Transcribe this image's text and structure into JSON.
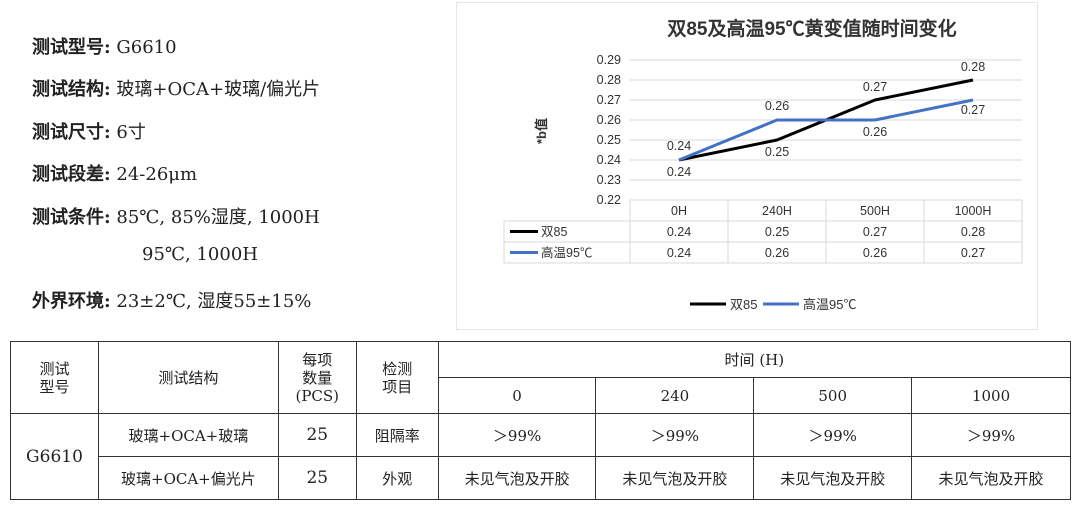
{
  "specs": [
    {
      "key": "测试型号:",
      "value": "G6610"
    },
    {
      "key": "测试结构:",
      "value": "玻璃+OCA+玻璃/偏光片"
    },
    {
      "key": "测试尺寸:",
      "value": "6寸"
    },
    {
      "key": "测试段差:",
      "value": "24-26μm"
    },
    {
      "key": "测试条件:",
      "value": "85℃, 85%湿度, 1000H"
    },
    {
      "key": "",
      "value": "95℃, 1000H"
    },
    {
      "key": "外界环境:",
      "value": "23±2℃, 湿度55±15%"
    }
  ],
  "chart_data": {
    "type": "line",
    "title": "双85及高温95℃黄变值随时间变化",
    "ylabel": "*b值",
    "xlabel": "",
    "categories": [
      "0H",
      "240H",
      "500H",
      "1000H"
    ],
    "ylim": [
      0.22,
      0.29
    ],
    "yticks": [
      0.22,
      0.23,
      0.24,
      0.25,
      0.26,
      0.27,
      0.28,
      0.29
    ],
    "ytick_labels": [
      "0.22",
      "0.23",
      "0.24",
      "0.25",
      "0.26",
      "0.27",
      "0.28",
      "0.29"
    ],
    "series": [
      {
        "name": "双85",
        "color": "#000000",
        "values": [
          0.24,
          0.25,
          0.27,
          0.28
        ],
        "labels": [
          "0.24",
          "0.25",
          "0.27",
          "0.28"
        ]
      },
      {
        "name": "高温95℃",
        "color": "#4472c4",
        "values": [
          0.24,
          0.26,
          0.26,
          0.27
        ],
        "labels": [
          "0.24",
          "0.26",
          "0.26",
          "0.27"
        ]
      }
    ],
    "legend": "bottom",
    "data_table": true
  },
  "table": {
    "h_model": "测试型号",
    "h_structure": "测试结构",
    "h_qty": "每项数量(PCS)",
    "h_item": "检测项目",
    "h_time": "时间 (H)",
    "times": [
      "0",
      "240",
      "500",
      "1000"
    ],
    "model": "G6610",
    "rows": [
      {
        "structure": "玻璃+OCA+玻璃",
        "qty": "25",
        "item": "阻隔率",
        "values": [
          "＞99%",
          "＞99%",
          "＞99%",
          "＞99%"
        ]
      },
      {
        "structure": "玻璃+OCA+偏光片",
        "qty": "25",
        "item": "外观",
        "values": [
          "未见气泡及开胶",
          "未见气泡及开胶",
          "未见气泡及开胶",
          "未见气泡及开胶"
        ]
      }
    ]
  }
}
